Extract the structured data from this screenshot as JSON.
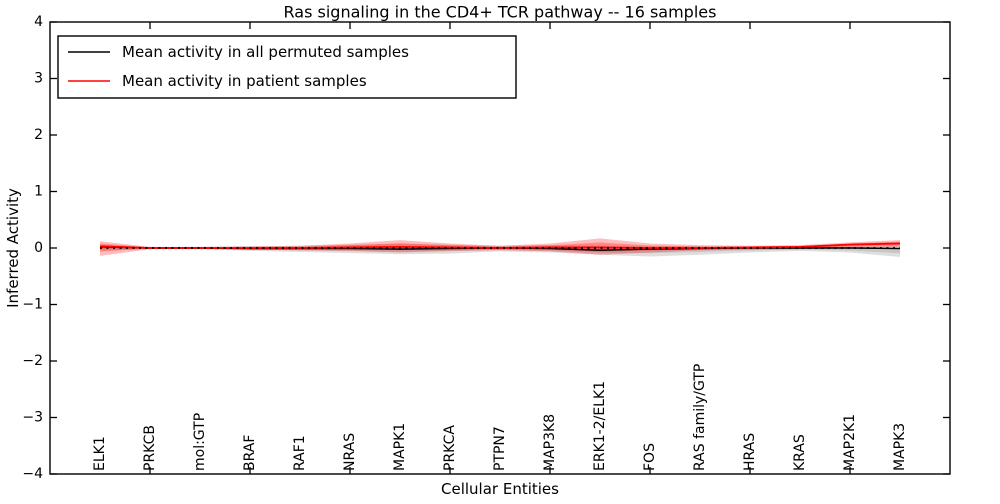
{
  "title": "Ras signaling in the CD4+ TCR pathway -- 16 samples",
  "legend": {
    "entries": [
      {
        "label": "Mean activity in all permuted samples",
        "color": "#000000"
      },
      {
        "label": "Mean activity in patient samples",
        "color": "#ff0000"
      }
    ],
    "position": "upper left"
  },
  "chart_data": {
    "type": "line",
    "title": "Ras signaling in the CD4+ TCR pathway -- 16 samples",
    "xlabel": "Cellular Entities",
    "ylabel": "Inferred Activity",
    "ylim": [
      -4,
      4
    ],
    "yticks": [
      -4,
      -3,
      -2,
      -1,
      0,
      1,
      2,
      3,
      4
    ],
    "grid": false,
    "legend_position": "upper left",
    "categories": [
      "ELK1",
      "PRKCB",
      "mol:GTP",
      "BRAF",
      "RAF1",
      "NRAS",
      "MAPK1",
      "PRKCA",
      "PTPN7",
      "MAP3K8",
      "ERK1-2/ELK1",
      "FOS",
      "RAS family/GTP",
      "HRAS",
      "KRAS",
      "MAP2K1",
      "MAPK3"
    ],
    "series": [
      {
        "name": "Mean activity in all permuted samples",
        "color": "#000000",
        "band_color": "#000000",
        "values": [
          0.02,
          0.0,
          0.0,
          -0.01,
          -0.01,
          -0.01,
          -0.02,
          -0.01,
          0.0,
          -0.01,
          -0.04,
          -0.02,
          -0.01,
          0.0,
          0.0,
          0.0,
          -0.01
        ],
        "band_upper": [
          0.05,
          0.02,
          0.02,
          0.03,
          0.04,
          0.06,
          0.07,
          0.06,
          0.04,
          0.05,
          0.04,
          0.03,
          0.03,
          0.02,
          0.02,
          0.03,
          0.05
        ],
        "band_lower": [
          -0.04,
          -0.02,
          -0.02,
          -0.05,
          -0.07,
          -0.09,
          -0.11,
          -0.1,
          -0.06,
          -0.08,
          -0.12,
          -0.15,
          -0.12,
          -0.08,
          -0.05,
          -0.08,
          -0.16
        ]
      },
      {
        "name": "Mean activity in patient samples",
        "color": "#ff0000",
        "band_color": "#ff0000",
        "values": [
          0.03,
          0.0,
          0.0,
          0.0,
          0.0,
          0.01,
          0.02,
          0.01,
          0.0,
          0.01,
          0.01,
          0.0,
          0.0,
          0.01,
          0.02,
          0.06,
          0.08
        ],
        "band_upper": [
          0.12,
          0.02,
          0.02,
          0.03,
          0.04,
          0.08,
          0.14,
          0.08,
          0.04,
          0.08,
          0.17,
          0.08,
          0.05,
          0.04,
          0.05,
          0.1,
          0.14
        ],
        "band_lower": [
          -0.14,
          -0.02,
          -0.02,
          -0.03,
          -0.04,
          -0.05,
          -0.08,
          -0.05,
          -0.04,
          -0.06,
          -0.12,
          -0.08,
          -0.04,
          -0.03,
          -0.02,
          0.0,
          0.02
        ]
      }
    ],
    "zero_line": {
      "y": 0,
      "style": "dotted",
      "color": "#000000"
    }
  },
  "colors": {
    "background": "#ffffff",
    "spine": "#000000",
    "permuted_line": "#000000",
    "patient_line": "#ff0000"
  }
}
